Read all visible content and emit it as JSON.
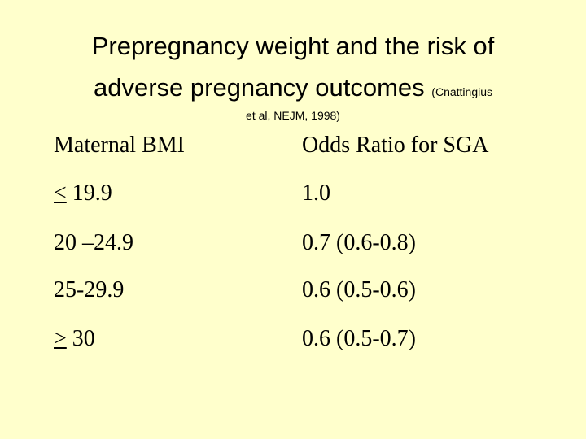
{
  "slide": {
    "title_line1": "Prepregnancy weight and the risk of",
    "title_line2": "adverse pregnancy outcomes",
    "citation_part1": "(Cnattingius",
    "citation_part2": "et al, NEJM, 1998)"
  },
  "table": {
    "headers": [
      "Maternal BMI",
      "Odds Ratio for SGA"
    ],
    "rows": [
      {
        "bmi_symbol": "<",
        "bmi_value": " 19.9",
        "odds_ratio": "1.0"
      },
      {
        "bmi_value": "20 –24.9",
        "odds_ratio": "0.7 (0.6-0.8)"
      },
      {
        "bmi_value": "25-29.9",
        "odds_ratio": "0.6 (0.5-0.6)"
      },
      {
        "bmi_symbol": ">",
        "bmi_value": " 30",
        "odds_ratio": "0.6 (0.5-0.7)"
      }
    ]
  },
  "colors": {
    "background": "#ffffcc",
    "text": "#000000"
  }
}
